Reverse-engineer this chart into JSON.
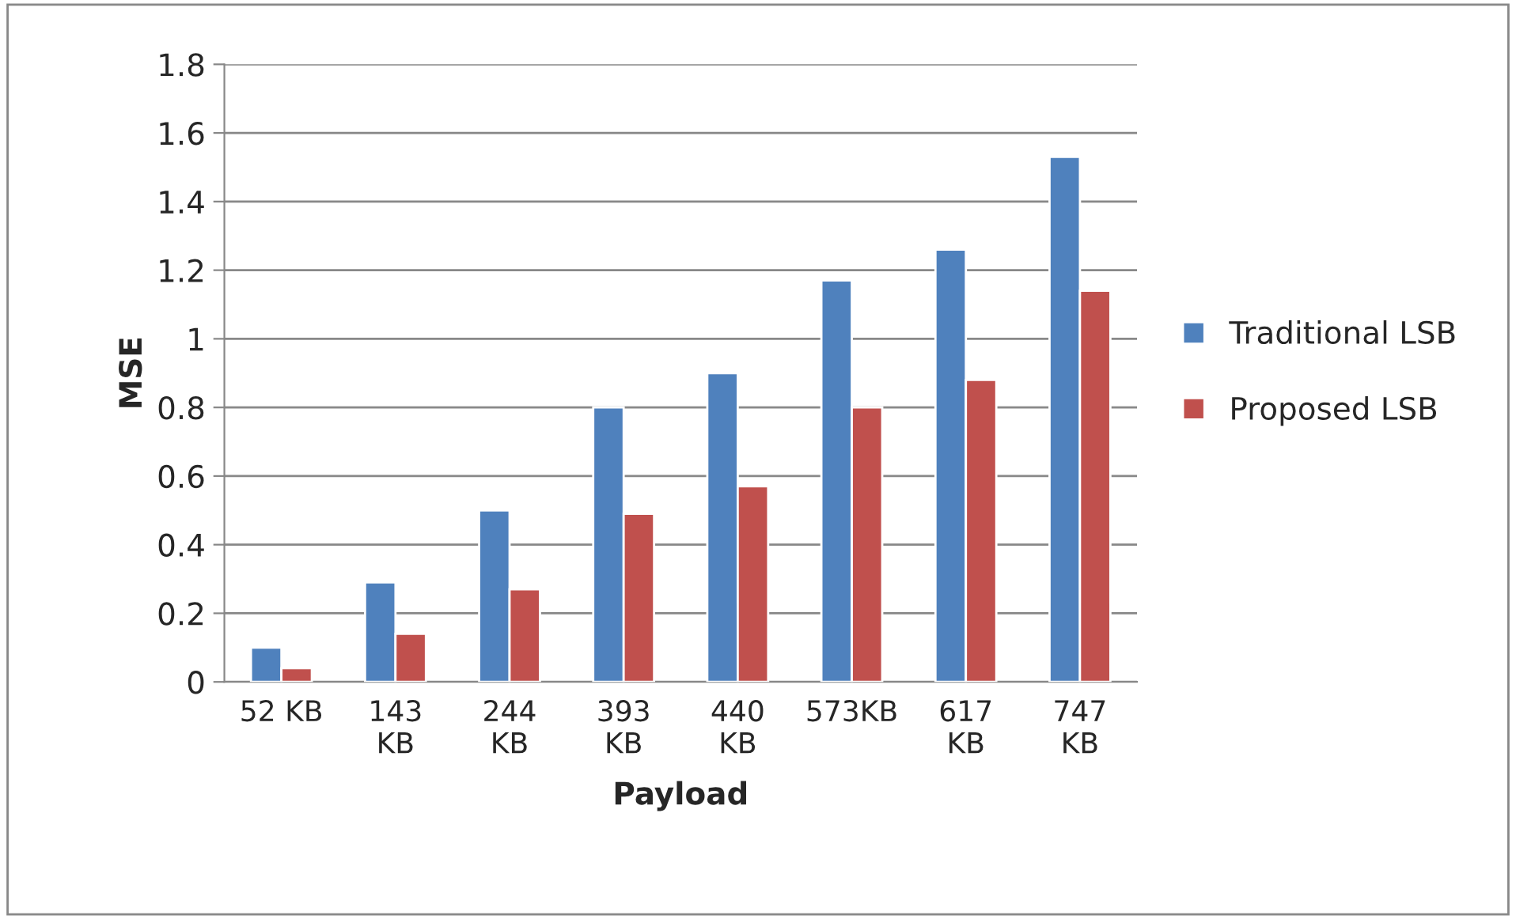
{
  "chart_data": {
    "type": "bar",
    "xlabel": "Payload",
    "ylabel": "MSE",
    "categories": [
      "52 KB",
      "143\nKB",
      "244\nKB",
      "393\nKB",
      "440\nKB",
      "573KB",
      "617\nKB",
      "747\nKB"
    ],
    "series": [
      {
        "name": "Traditional LSB",
        "color": "#4f81bd",
        "values": [
          0.1,
          0.29,
          0.5,
          0.8,
          0.9,
          1.17,
          1.26,
          1.53
        ]
      },
      {
        "name": "Proposed LSB",
        "color": "#c0504d",
        "values": [
          0.04,
          0.14,
          0.27,
          0.49,
          0.57,
          0.8,
          0.88,
          1.14
        ]
      }
    ],
    "ylim": [
      0,
      1.8
    ],
    "yticks": [
      0,
      0.2,
      0.4,
      0.6,
      0.8,
      1,
      1.2,
      1.4,
      1.6,
      1.8
    ],
    "grid": "y",
    "legend": "right"
  }
}
